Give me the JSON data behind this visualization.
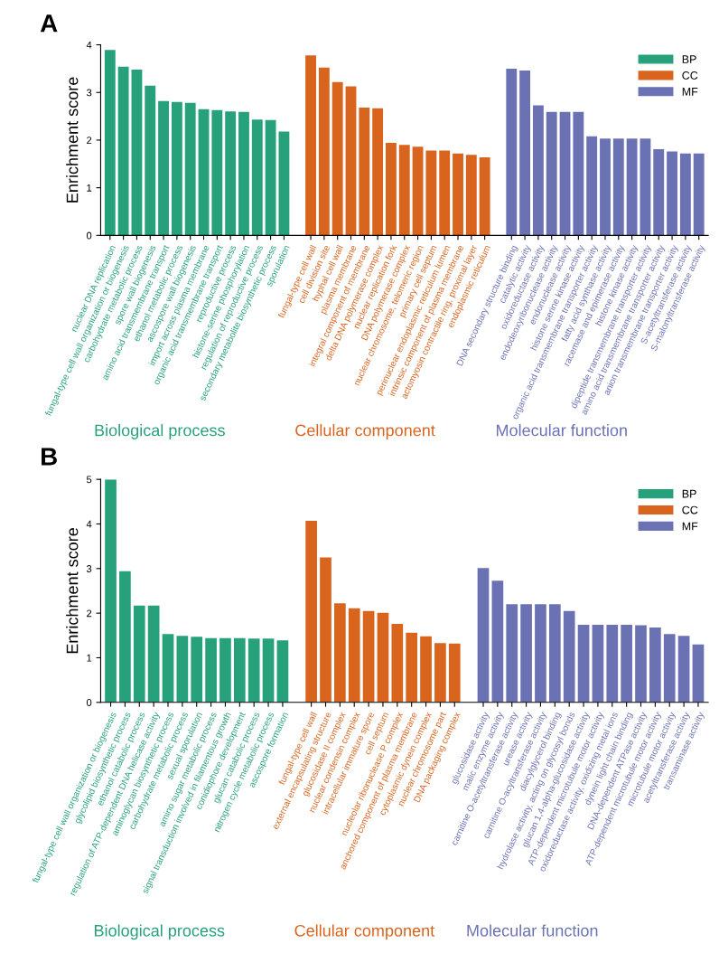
{
  "chart_data": [
    {
      "type": "bar",
      "title": "A",
      "ylabel": "Enrichment score",
      "ylim": [
        0,
        4
      ],
      "yticks": [
        0,
        1,
        2,
        3,
        4
      ],
      "grid": false,
      "legend": "top right",
      "categories": [
        "nuclear DNA replication",
        "fungal-type cell wall organization or biogenesis",
        "carbohydrate metabolic process",
        "spore wall biogenesis",
        "amino acid transmembrane transport",
        "ethanol metabolic process",
        "ascospore wall biogenesis",
        "import across plasma membrane",
        "organic acid transmembrane transport",
        "reproductive process",
        "histone-serine phosphorylation",
        "regulation of reproductive process",
        "secondary metabolite biosynthetic process",
        "sporulation",
        null,
        "fungal-type cell wall",
        "cell division site",
        "hyphal cell wall",
        "plasma membrane",
        "integral component of membrane",
        "delta DNA polymerase complex",
        "nuclear replication fork",
        "DNA polymerase complex",
        "nuclear chromosome, telomeric region",
        "primary cell septum",
        "perinuclear endoplasmic reticulum lumen",
        "intrinsic component of plasma membrane",
        "actomyosin contractile ring, proximal layer",
        "endoplasmic reticulum",
        null,
        "DNA secondary structure binding",
        "catalytic activity",
        "oxidoreductase activity",
        "endodeoxyribonuclease activity",
        "endonuclease activity",
        "histone serine kinase activity",
        "organic acid transmembrane transporter activity",
        "fatty acid synthase activity",
        "racemase and epimerase activity",
        "histone kinase activity",
        "dipeptide transmembrane transporter activity",
        "amino acid transmembrane transporter activity",
        "anion transmembrane transporter activity",
        "S-acetyltransferase activity",
        "S-malonyltransferase activity"
      ],
      "series": [
        {
          "name": "BP",
          "color": "#26a17b",
          "values": [
            3.89,
            3.54,
            3.48,
            3.14,
            2.82,
            2.8,
            2.78,
            2.65,
            2.63,
            2.6,
            2.59,
            2.43,
            2.42,
            2.18,
            null,
            null,
            null,
            null,
            null,
            null,
            null,
            null,
            null,
            null,
            null,
            null,
            null,
            null,
            null,
            null,
            null,
            null,
            null,
            null,
            null,
            null,
            null,
            null,
            null,
            null,
            null,
            null,
            null,
            null,
            null
          ]
        },
        {
          "name": "CC",
          "color": "#d9641e",
          "values": [
            null,
            null,
            null,
            null,
            null,
            null,
            null,
            null,
            null,
            null,
            null,
            null,
            null,
            null,
            null,
            3.78,
            3.52,
            3.22,
            3.13,
            2.68,
            2.67,
            1.94,
            1.9,
            1.86,
            1.78,
            1.78,
            1.72,
            1.69,
            1.64,
            null,
            null,
            null,
            null,
            null,
            null,
            null,
            null,
            null,
            null,
            null,
            null,
            null,
            null,
            null,
            null
          ]
        },
        {
          "name": "MF",
          "color": "#6b72b4",
          "values": [
            null,
            null,
            null,
            null,
            null,
            null,
            null,
            null,
            null,
            null,
            null,
            null,
            null,
            null,
            null,
            null,
            null,
            null,
            null,
            null,
            null,
            null,
            null,
            null,
            null,
            null,
            null,
            null,
            null,
            null,
            3.5,
            3.46,
            2.73,
            2.59,
            2.59,
            2.59,
            2.08,
            2.03,
            2.03,
            2.03,
            2.03,
            1.81,
            1.76,
            1.72,
            1.72
          ]
        }
      ],
      "annotations": [
        "Biological process",
        "Cellular component",
        "Molecular function"
      ]
    },
    {
      "type": "bar",
      "title": "B",
      "ylabel": "Enrichment score",
      "ylim": [
        0,
        5
      ],
      "yticks": [
        0,
        1,
        2,
        3,
        4,
        5
      ],
      "grid": false,
      "legend": "top right",
      "categories": [
        "fungal-type cell wall organization or biogenesis",
        "glycolipid biosynthetic process",
        "ethanol catabolic process",
        "regulation of ATP-dependent DNA helicase activity",
        "aminoglycan biosynthetic process",
        "carbohydrate metabolic process",
        "sexual sporulation",
        "amino sugar metabolic process",
        "signal transduction involved in filamentous growth",
        "conidiophore development",
        "glucan catabolic process",
        "nitrogen cycle metabolic process",
        "ascospore formation",
        null,
        "fungal-type cell wall",
        "external encapsulating structure",
        "glucosidase II complex",
        "nuclear condensin complex",
        "intracellular immature spore",
        "cell septum",
        "nucleolar ribonuclease P complex",
        "anchored component of plasma membrane",
        "cytoplasmic dynein complex",
        "nuclear chromosome part",
        "DNA packaging complex",
        null,
        "glucosidase activity",
        "malic enzyme activity",
        "carnitine O-acetyltransferase activity",
        "urease activity",
        "carnitine O-acyltransferase activity",
        "diacylglycerol binding",
        "hydrolase activity, acting on glycosyl bonds",
        "glucan 1,4-alpha-glucosidase activity",
        "ATP-dependent microtubule motor activity",
        "oxidoreductase activity, oxidizing metal ions",
        "dynein light chain binding",
        "DNA-dependent ATPase activity",
        "ATP-dependent microtubule motor activity",
        "microtubule motor activity",
        "acetyltransferase activity",
        "transaminase activity"
      ],
      "series": [
        {
          "name": "BP",
          "color": "#26a17b",
          "values": [
            5.0,
            2.94,
            2.17,
            2.17,
            1.53,
            1.49,
            1.47,
            1.44,
            1.44,
            1.44,
            1.43,
            1.43,
            1.39,
            null,
            null,
            null,
            null,
            null,
            null,
            null,
            null,
            null,
            null,
            null,
            null,
            null,
            null,
            null,
            null,
            null,
            null,
            null,
            null,
            null,
            null,
            null,
            null,
            null,
            null,
            null,
            null,
            null
          ]
        },
        {
          "name": "CC",
          "color": "#d9641e",
          "values": [
            null,
            null,
            null,
            null,
            null,
            null,
            null,
            null,
            null,
            null,
            null,
            null,
            null,
            null,
            4.07,
            3.25,
            2.22,
            2.11,
            2.05,
            2.01,
            1.76,
            1.56,
            1.48,
            1.33,
            1.32,
            null,
            null,
            null,
            null,
            null,
            null,
            null,
            null,
            null,
            null,
            null,
            null,
            null,
            null,
            null,
            null,
            null
          ]
        },
        {
          "name": "MF",
          "color": "#6b72b4",
          "values": [
            null,
            null,
            null,
            null,
            null,
            null,
            null,
            null,
            null,
            null,
            null,
            null,
            null,
            null,
            null,
            null,
            null,
            null,
            null,
            null,
            null,
            null,
            null,
            null,
            null,
            null,
            3.01,
            2.73,
            2.2,
            2.2,
            2.2,
            2.2,
            2.05,
            1.74,
            1.74,
            1.74,
            1.74,
            1.73,
            1.68,
            1.53,
            1.49,
            1.3
          ]
        }
      ],
      "annotations": [
        "Biological process",
        "Cellular component",
        "Molecular function"
      ]
    }
  ]
}
